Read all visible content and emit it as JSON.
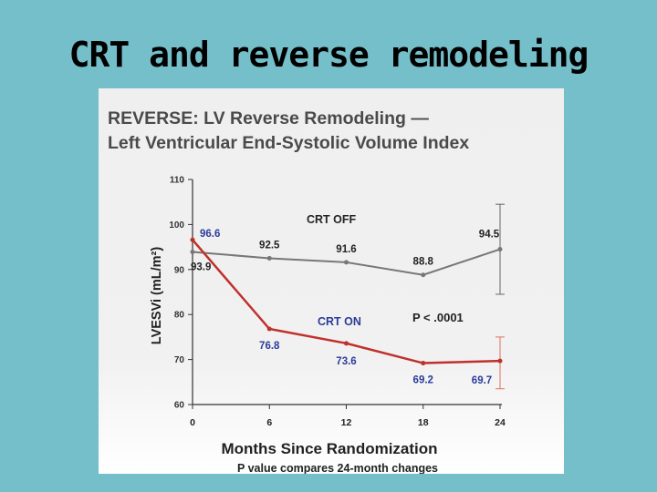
{
  "slide": {
    "title": "CRT and reverse remodeling"
  },
  "figure": {
    "title_line1": "REVERSE: LV Reverse Remodeling —",
    "title_line2": "Left Ventricular End-Systolic Volume Index"
  },
  "colors": {
    "background": "#74bfca",
    "crt_off": "#777777",
    "crt_on": "#c0302b",
    "on_labels": "#2a3c9a"
  },
  "chart_data": {
    "type": "line",
    "xlabel": "Months Since Randomization",
    "ylabel": "LVESVi (mL/m²)",
    "note": "P value compares 24-month changes",
    "x": [
      0,
      6,
      12,
      18,
      24
    ],
    "ylim": [
      60,
      110
    ],
    "yticks": [
      "60",
      "70",
      "80",
      "90",
      "100",
      "110"
    ],
    "xticks": [
      "0",
      "6",
      "12",
      "18",
      "24"
    ],
    "series": [
      {
        "name": "CRT OFF",
        "values": [
          93.9,
          92.5,
          91.6,
          88.8,
          94.5
        ],
        "labels": [
          "93.9",
          "92.5",
          "91.6",
          "88.8",
          "94.5"
        ],
        "error_24": [
          84.5,
          104.5
        ]
      },
      {
        "name": "CRT ON",
        "values": [
          96.6,
          76.8,
          73.6,
          69.2,
          69.7
        ],
        "labels": [
          "96.6",
          "76.8",
          "73.6",
          "69.2",
          "69.7"
        ],
        "error_24": [
          63.5,
          75
        ]
      }
    ],
    "annotation": "P < .0001"
  }
}
